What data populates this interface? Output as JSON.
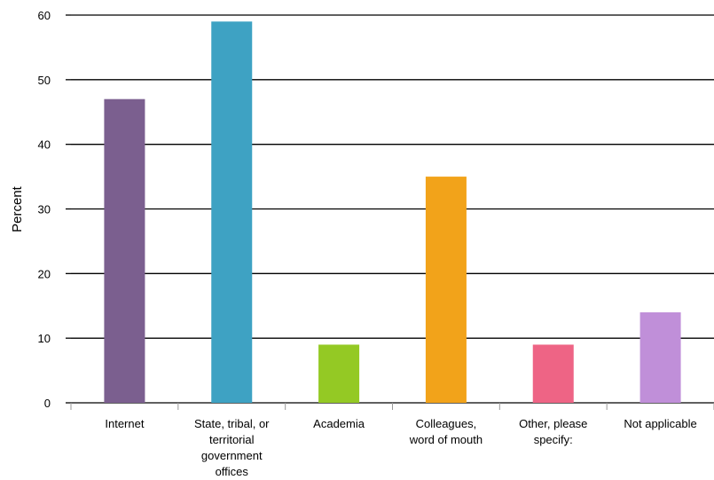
{
  "chart_data": {
    "type": "bar",
    "ylabel": "Percent",
    "xlabel": "",
    "ylim": [
      0,
      60
    ],
    "yticks": [
      0,
      10,
      20,
      30,
      40,
      50,
      60
    ],
    "grid": true,
    "categories": [
      [
        "Internet"
      ],
      [
        "State, tribal, or",
        "territorial",
        "government",
        "offices"
      ],
      [
        "Academia"
      ],
      [
        "Colleagues,",
        "word of mouth"
      ],
      [
        "Other, please",
        "specify:"
      ],
      [
        "Not applicable"
      ]
    ],
    "values": [
      47,
      59,
      9,
      35,
      9,
      14
    ],
    "colors": [
      "#7b5f8f",
      "#3ea2c3",
      "#94c924",
      "#f2a31a",
      "#ee6485",
      "#c08fd9"
    ]
  }
}
